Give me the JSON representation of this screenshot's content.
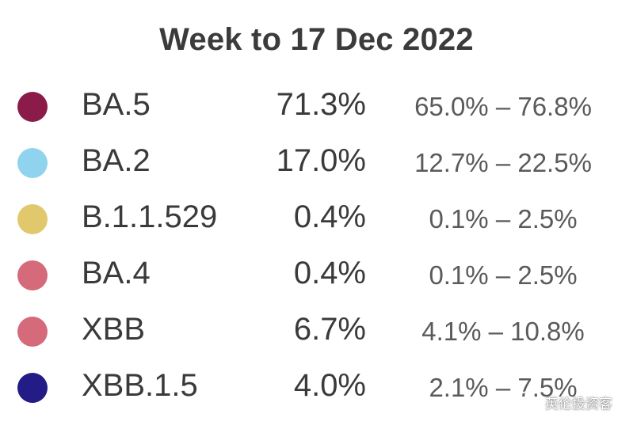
{
  "chart_data": {
    "type": "table",
    "title": "Week to 17 Dec 2022",
    "rows": [
      {
        "name": "BA.5",
        "value": "71.3%",
        "ci": "65.0% – 76.8%",
        "color": "#8b1c4a"
      },
      {
        "name": "BA.2",
        "value": "17.0%",
        "ci": "12.7% – 22.5%",
        "color": "#8fd3ee"
      },
      {
        "name": "B.1.1.529",
        "value": "0.4%",
        "ci": "0.1% – 2.5%",
        "color": "#e1c86c"
      },
      {
        "name": "BA.4",
        "value": "0.4%",
        "ci": "0.1% – 2.5%",
        "color": "#d46a7a"
      },
      {
        "name": "XBB",
        "value": "6.7%",
        "ci": "4.1% – 10.8%",
        "color": "#d46a7a"
      },
      {
        "name": "XBB.1.5",
        "value": "4.0%",
        "ci": "2.1% – 7.5%",
        "color": "#231c86"
      }
    ]
  },
  "watermark": {
    "text": "英伦投资客",
    "icon": "wechat-icon"
  }
}
